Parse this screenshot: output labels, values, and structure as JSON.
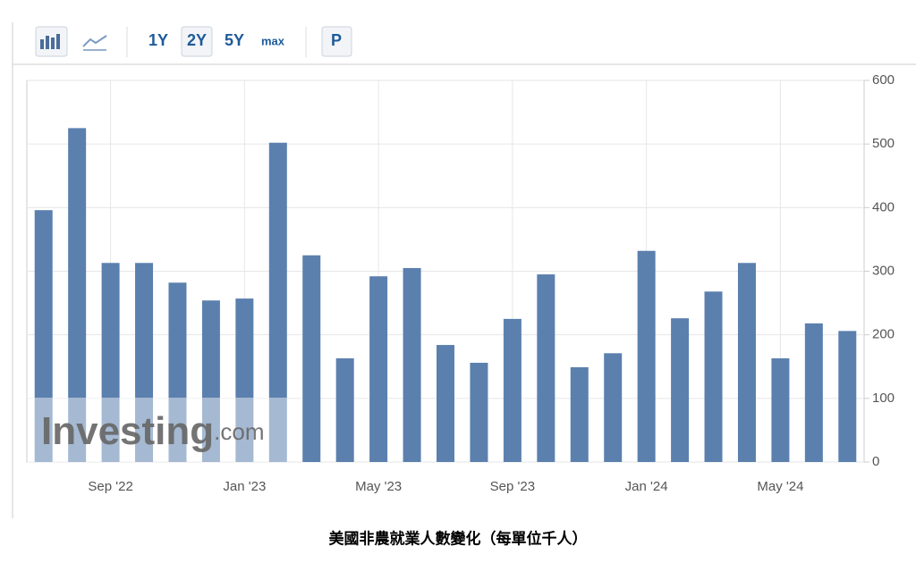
{
  "toolbar": {
    "buttons": [
      "1Y",
      "2Y",
      "5Y",
      "max",
      "P"
    ]
  },
  "chart_data": {
    "type": "bar",
    "title": "美國非農就業人數變化（每單位千人）",
    "watermark": {
      "brand": "Investing",
      "suffix": ".com"
    },
    "categories": [
      null,
      null,
      "Sep '22",
      null,
      null,
      null,
      "Jan '23",
      null,
      null,
      null,
      "May '23",
      null,
      null,
      null,
      "Sep '23",
      null,
      null,
      null,
      "Jan '24",
      null,
      null,
      null,
      "May '24",
      null,
      null
    ],
    "values": [
      396,
      525,
      313,
      313,
      282,
      254,
      257,
      502,
      325,
      163,
      292,
      305,
      184,
      156,
      225,
      295,
      149,
      171,
      332,
      226,
      268,
      313,
      163,
      218,
      206
    ],
    "color": "#5b80ae",
    "ylim": [
      0,
      600
    ],
    "yticks": [
      0,
      100,
      200,
      300,
      400,
      500,
      600
    ],
    "grid": true
  }
}
